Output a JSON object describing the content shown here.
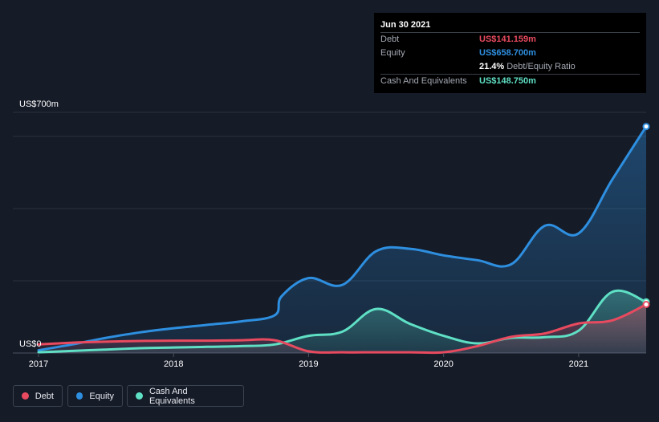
{
  "chart_data": {
    "type": "area",
    "title": "",
    "ylabel_top": "US$700m",
    "ylabel_zero": "US$0",
    "ylim": [
      0,
      700
    ],
    "xlim": [
      2017.0,
      2021.5
    ],
    "x_ticks": [
      {
        "value": 2017,
        "label": "2017"
      },
      {
        "value": 2018,
        "label": "2018"
      },
      {
        "value": 2019,
        "label": "2019"
      },
      {
        "value": 2020,
        "label": "2020"
      },
      {
        "value": 2021,
        "label": "2021"
      }
    ],
    "gridlines": [
      0,
      210,
      420,
      630,
      700
    ],
    "series": [
      {
        "name": "Equity",
        "color": "#2e8fe0",
        "points": [
          [
            2017.0,
            8
          ],
          [
            2017.25,
            25
          ],
          [
            2017.5,
            44
          ],
          [
            2017.75,
            60
          ],
          [
            2018.0,
            72
          ],
          [
            2018.25,
            82
          ],
          [
            2018.5,
            92
          ],
          [
            2018.75,
            110
          ],
          [
            2018.8,
            165
          ],
          [
            2019.0,
            218
          ],
          [
            2019.25,
            198
          ],
          [
            2019.5,
            296
          ],
          [
            2019.75,
            303
          ],
          [
            2020.0,
            284
          ],
          [
            2020.25,
            270
          ],
          [
            2020.5,
            258
          ],
          [
            2020.75,
            370
          ],
          [
            2021.0,
            348
          ],
          [
            2021.25,
            505
          ],
          [
            2021.5,
            658.7
          ]
        ]
      },
      {
        "name": "Cash And Equivalents",
        "color": "#5fe0c5",
        "points": [
          [
            2017.0,
            2
          ],
          [
            2017.25,
            6
          ],
          [
            2017.5,
            10
          ],
          [
            2017.75,
            14
          ],
          [
            2018.0,
            16
          ],
          [
            2018.25,
            18
          ],
          [
            2018.5,
            20
          ],
          [
            2018.75,
            25
          ],
          [
            2019.0,
            50
          ],
          [
            2019.25,
            62
          ],
          [
            2019.5,
            128
          ],
          [
            2019.75,
            85
          ],
          [
            2020.0,
            50
          ],
          [
            2020.25,
            28
          ],
          [
            2020.5,
            44
          ],
          [
            2020.75,
            46
          ],
          [
            2021.0,
            65
          ],
          [
            2021.25,
            178
          ],
          [
            2021.5,
            148.75
          ]
        ]
      },
      {
        "name": "Debt",
        "color": "#e84a5f",
        "points": [
          [
            2017.0,
            25
          ],
          [
            2017.25,
            30
          ],
          [
            2017.5,
            33
          ],
          [
            2017.75,
            35
          ],
          [
            2018.0,
            36
          ],
          [
            2018.25,
            36
          ],
          [
            2018.5,
            37
          ],
          [
            2018.75,
            37
          ],
          [
            2019.0,
            5
          ],
          [
            2019.25,
            2
          ],
          [
            2019.5,
            2
          ],
          [
            2019.75,
            2
          ],
          [
            2020.0,
            2
          ],
          [
            2020.25,
            20
          ],
          [
            2020.5,
            47
          ],
          [
            2020.75,
            57
          ],
          [
            2021.0,
            86
          ],
          [
            2021.25,
            95
          ],
          [
            2021.5,
            141.159
          ]
        ]
      }
    ],
    "tooltip": {
      "date": "Jun 30 2021",
      "rows": [
        {
          "label": "Debt",
          "value": "US$141.159m",
          "color": "#e84a5f"
        },
        {
          "label": "Equity",
          "value": "US$658.700m",
          "color": "#2e8fe0"
        },
        {
          "label": "",
          "value": "21.4%",
          "sub": "Debt/Equity Ratio",
          "color": "#ffffff"
        },
        {
          "label": "Cash And Equivalents",
          "value": "US$148.750m",
          "color": "#5fe0c5"
        }
      ]
    },
    "legend": [
      {
        "name": "Debt",
        "color": "#e84a5f"
      },
      {
        "name": "Equity",
        "color": "#2e8fe0"
      },
      {
        "name": "Cash And Equivalents",
        "color": "#5fe0c5"
      }
    ]
  }
}
